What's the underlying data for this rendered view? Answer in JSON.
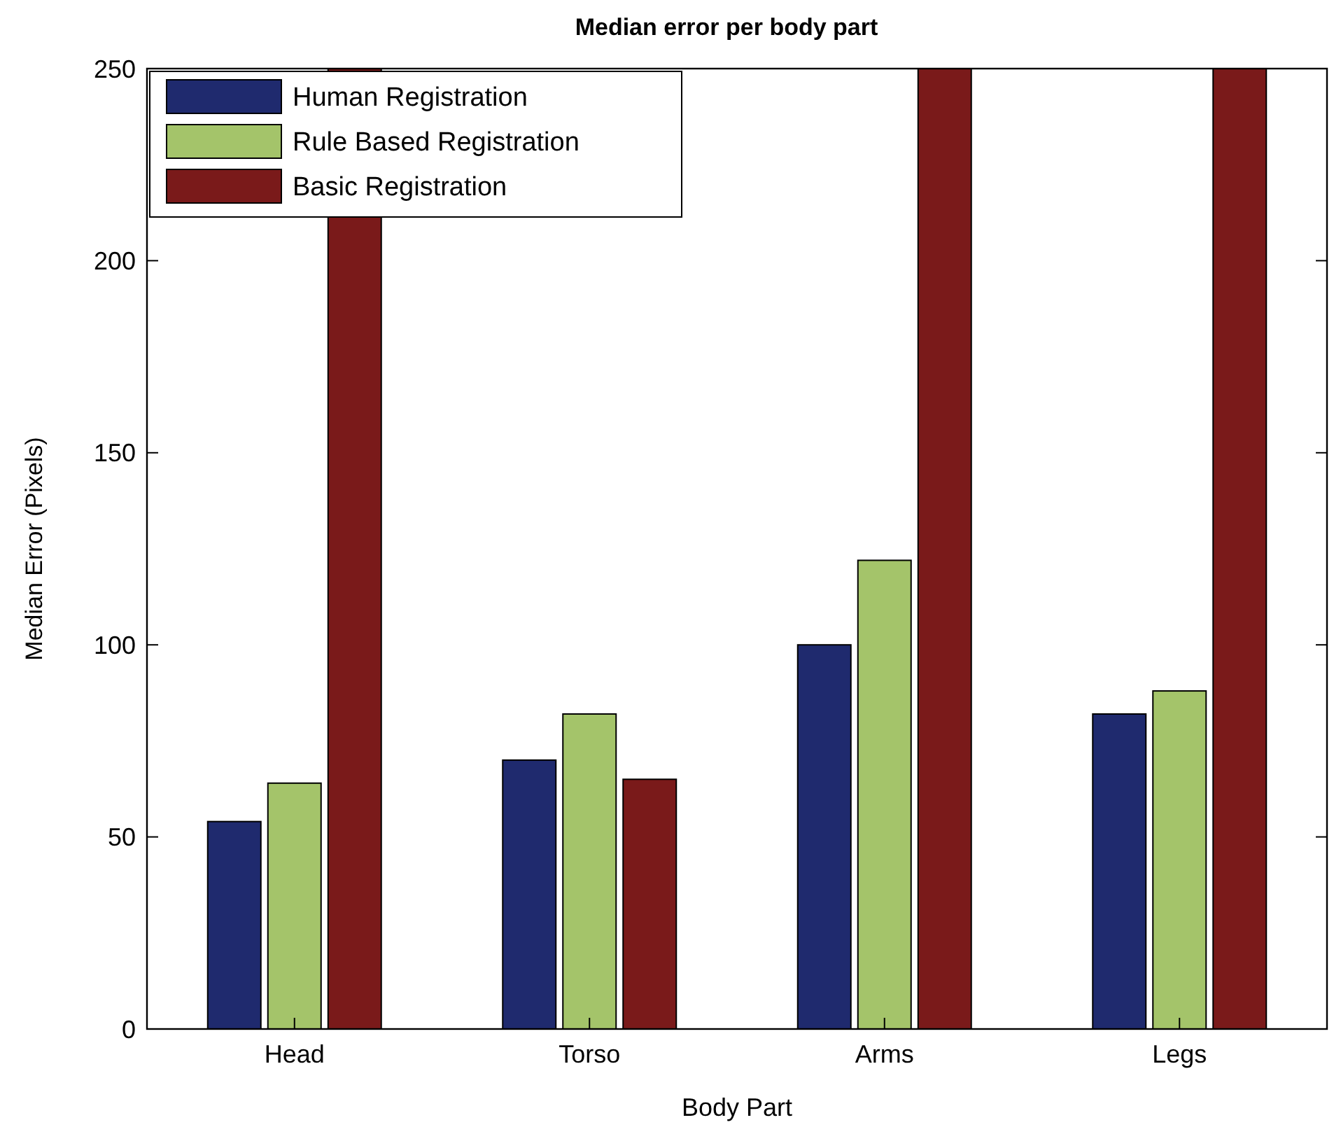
{
  "chart_data": {
    "type": "bar",
    "title": "Median error per body part",
    "xlabel": "Body Part",
    "ylabel": "Median Error (Pixels)",
    "categories": [
      "Head",
      "Torso",
      "Arms",
      "Legs"
    ],
    "series": [
      {
        "name": "Human Registration",
        "color": "#1f2a6e",
        "values": [
          54,
          70,
          100,
          82
        ]
      },
      {
        "name": "Rule Based Registration",
        "color": "#a4c46a",
        "values": [
          64,
          82,
          122,
          88
        ]
      },
      {
        "name": "Basic Registration",
        "color": "#7a1a1a",
        "values": [
          250,
          65,
          250,
          250
        ]
      }
    ],
    "ylim": [
      0,
      250
    ],
    "yticks": [
      0,
      50,
      100,
      150,
      200,
      250
    ],
    "grid": false,
    "legend": "top left"
  }
}
